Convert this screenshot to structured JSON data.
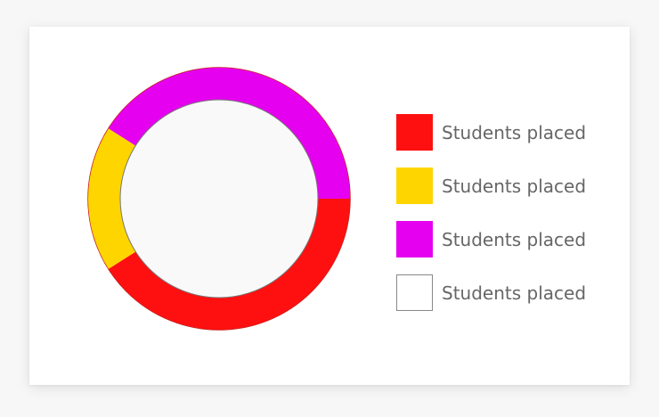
{
  "chart_data": {
    "type": "pie",
    "variant": "donut",
    "slices": [
      {
        "label": "Students placed",
        "value": 41,
        "color": "#ff1010"
      },
      {
        "label": "Students placed",
        "value": 18,
        "color": "#ffd500"
      },
      {
        "label": "Students placed",
        "value": 41,
        "color": "#e600f0"
      },
      {
        "label": "Students placed",
        "value": 0,
        "color": "#ffffff"
      }
    ],
    "legend_position": "right"
  }
}
